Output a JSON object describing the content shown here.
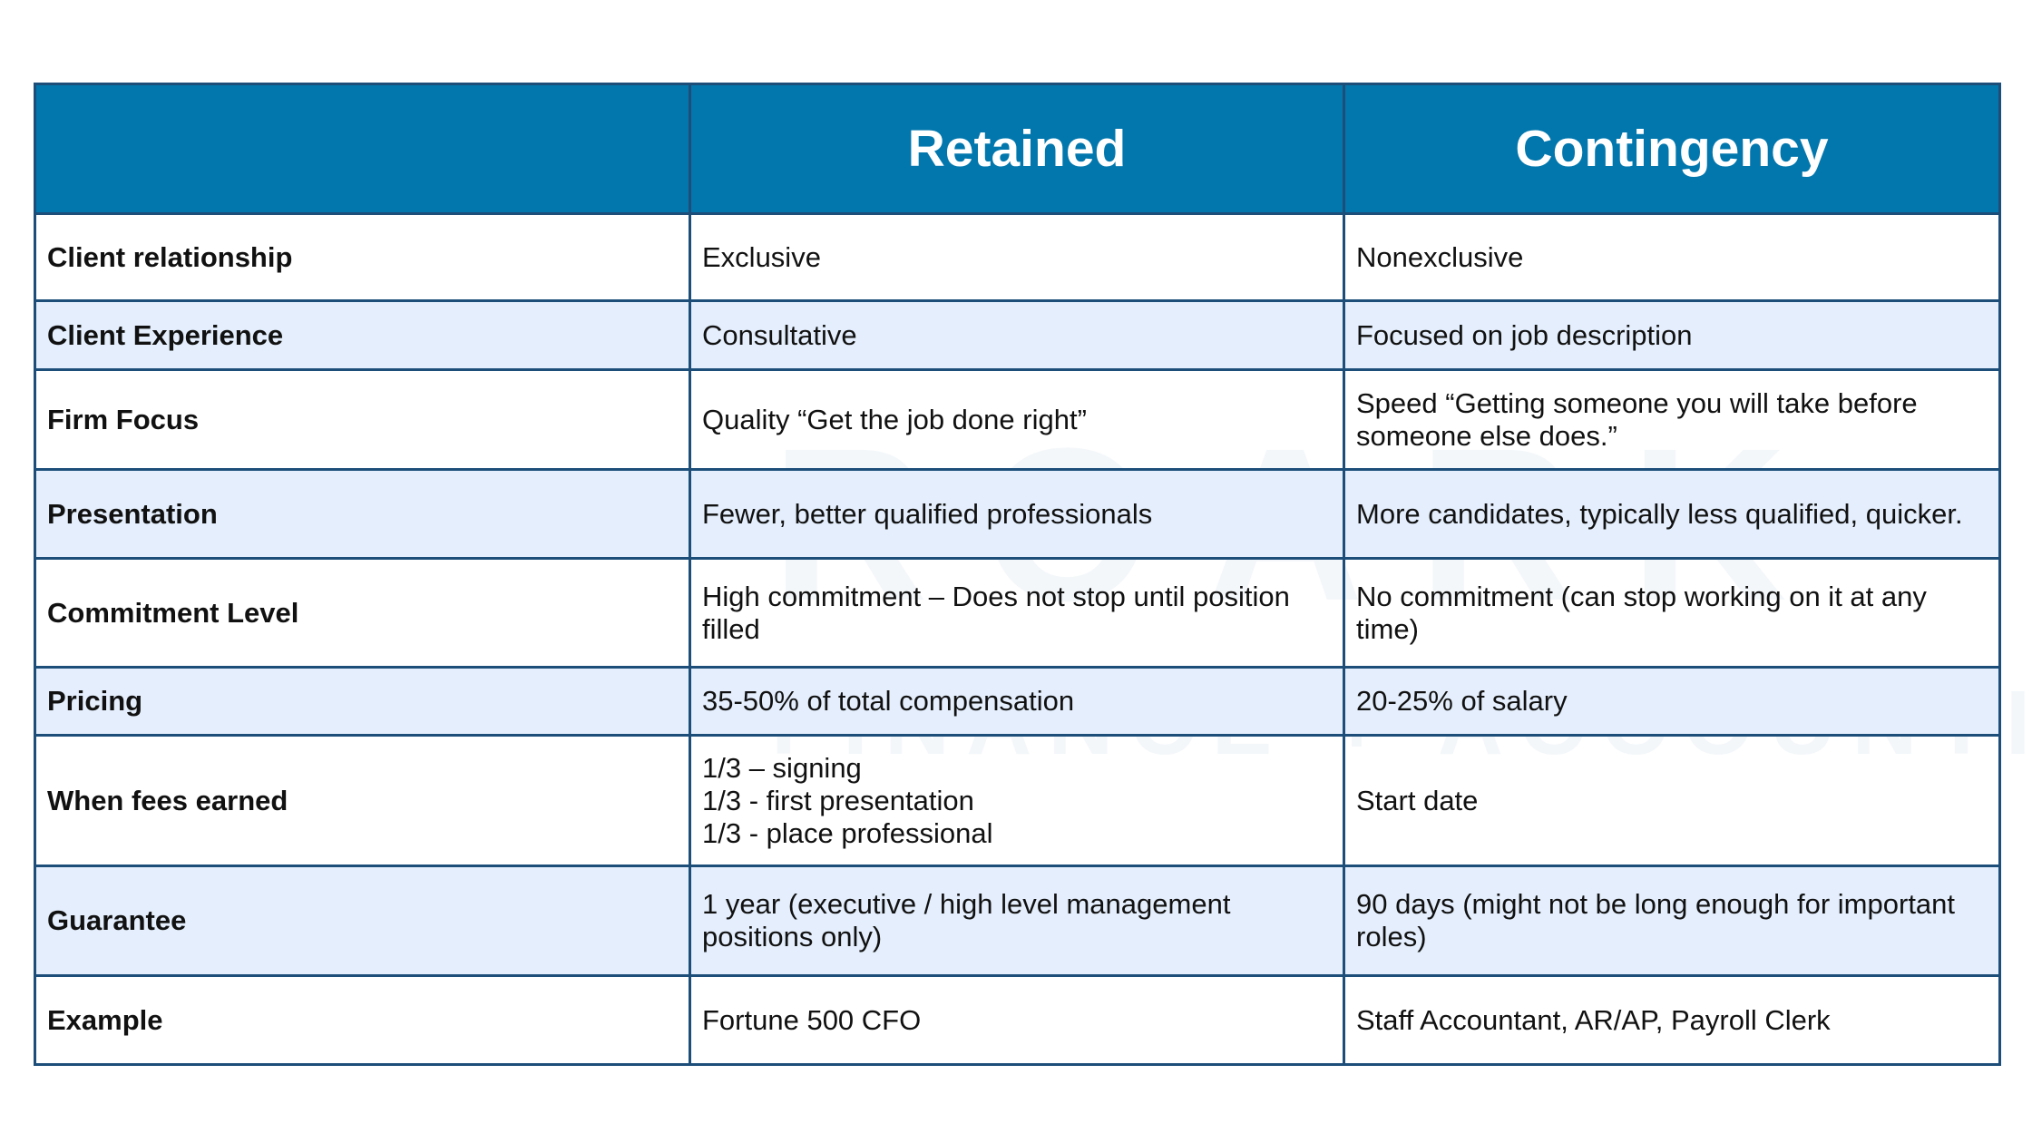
{
  "table": {
    "columns": [
      "Retained",
      "Contingency"
    ],
    "rows": [
      [
        "Client relationship",
        "Exclusive",
        "Nonexclusive"
      ],
      [
        "Client Experience",
        "Consultative",
        "Focused on job description"
      ],
      [
        "Firm Focus",
        "Quality “Get the job done right”",
        "Speed “Getting someone you will take before someone else does.”"
      ],
      [
        "Presentation",
        "Fewer, better qualified professionals",
        "More candidates, typically less qualified, quicker."
      ],
      [
        "Commitment Level",
        "High commitment – Does not stop until position filled",
        "No commitment (can stop working on it at any time)"
      ],
      [
        "Pricing",
        "35-50% of total compensation",
        "20-25% of salary"
      ],
      [
        "When fees earned",
        "1/3 – signing\n1/3 - first presentation\n1/3 - place professional",
        "Start date"
      ],
      [
        "Guarantee",
        "1 year (executive / high level management positions only)",
        "90 days (might not be long enough for important roles)"
      ],
      [
        "Example",
        "Fortune 500 CFO",
        "Staff Accountant, AR/AP, Payroll Clerk"
      ]
    ]
  },
  "watermark": {
    "name": "ROARK",
    "tagline": "FINANCE + ACCOUNTING"
  }
}
